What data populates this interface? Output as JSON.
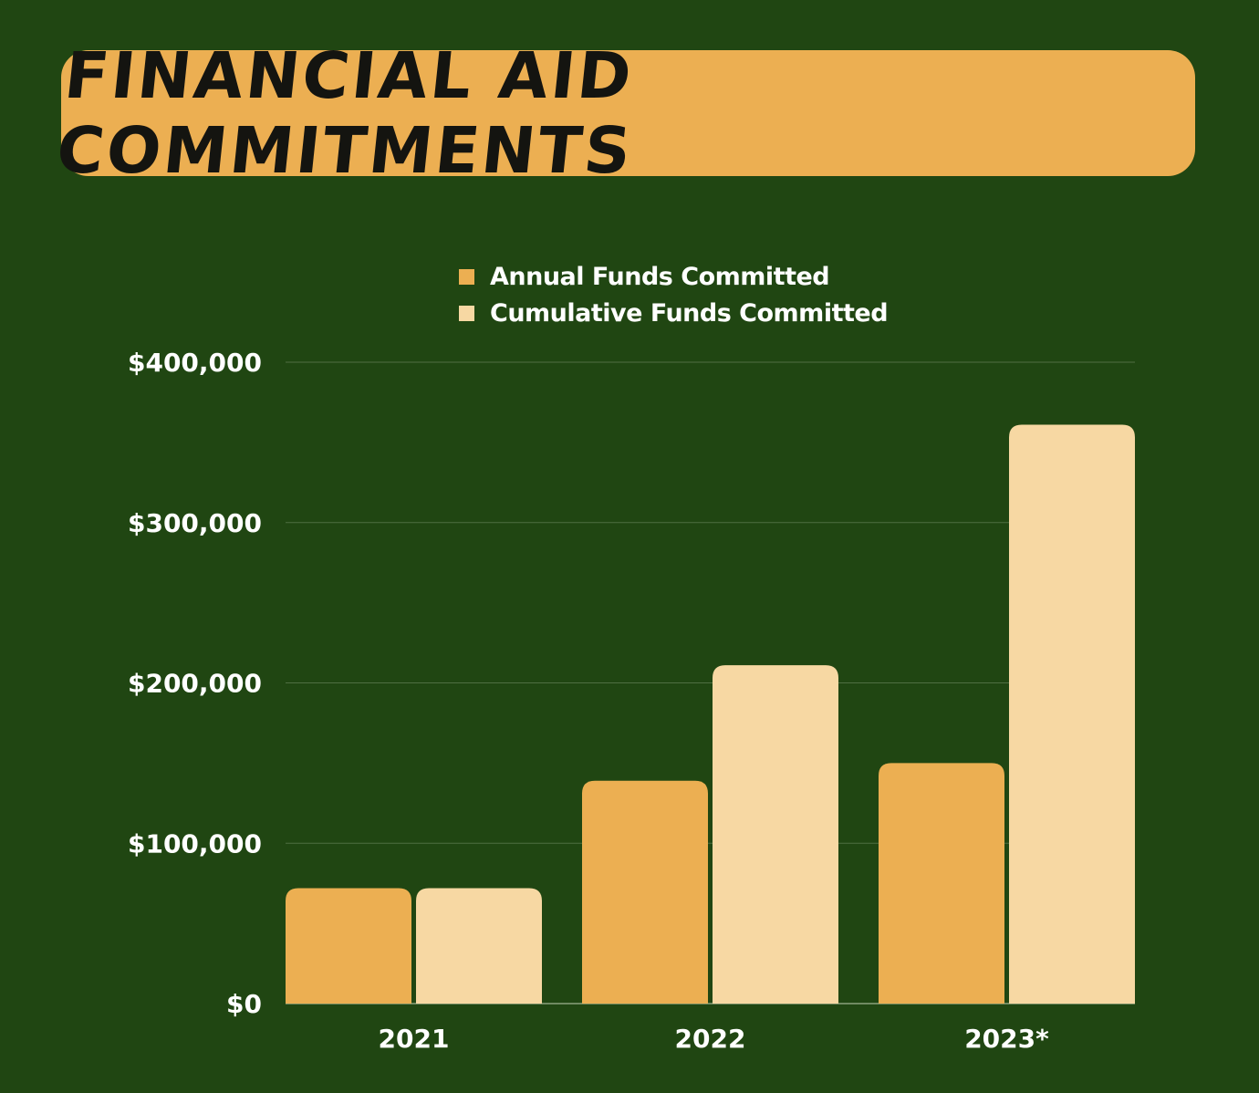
{
  "chart_data": {
    "type": "bar",
    "title": "FINANCIAL AID COMMITMENTS",
    "categories": [
      "2021",
      "2022",
      "2023*"
    ],
    "series": [
      {
        "name": "Annual Funds Committed",
        "values": [
          72000,
          139000,
          150000
        ],
        "color": "#ecaf52"
      },
      {
        "name": "Cumulative Funds Committed",
        "values": [
          72000,
          211000,
          361000
        ],
        "color": "#f7d8a3"
      }
    ],
    "ylim": [
      0,
      400000
    ],
    "yticks": [
      "$0",
      "$100,000",
      "$200,000",
      "$300,000",
      "$400,000"
    ],
    "grid": true,
    "legend": "top-center"
  }
}
